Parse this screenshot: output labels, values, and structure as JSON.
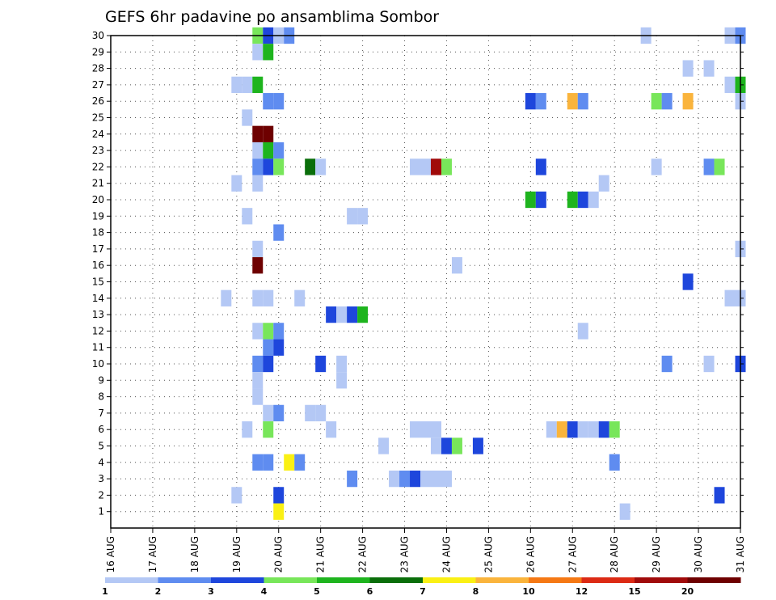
{
  "chart_data": {
    "type": "heatmap",
    "title": "GEFS 6hr padavine po ansamblima Sombor",
    "xlabel": "",
    "ylabel": "",
    "x_ticks": [
      "16 AUG",
      "17 AUG",
      "18 AUG",
      "19 AUG",
      "20 AUG",
      "21 AUG",
      "22 AUG",
      "23 AUG",
      "24 AUG",
      "25 AUG",
      "26 AUG",
      "27 AUG",
      "28 AUG",
      "29 AUG",
      "30 AUG",
      "31 AUG"
    ],
    "x_range_days": [
      16,
      31
    ],
    "y_range": [
      0,
      30
    ],
    "y_ticks": [
      1,
      2,
      3,
      4,
      5,
      6,
      7,
      8,
      9,
      10,
      11,
      12,
      13,
      14,
      15,
      16,
      17,
      18,
      19,
      20,
      21,
      22,
      23,
      24,
      25,
      26,
      27,
      28,
      29,
      30
    ],
    "grid": true,
    "legend_position": "bottom",
    "levels": [
      "1",
      "2",
      "3",
      "4",
      "5",
      "6",
      "7",
      "8",
      "10",
      "12",
      "15",
      "20"
    ],
    "colors": [
      "#b4c8f5",
      "#5f8cf0",
      "#1e46dc",
      "#78e65a",
      "#1eb41e",
      "#0a6e0a",
      "#faf014",
      "#fab43c",
      "#f57814",
      "#dc2a14",
      "#a00a0a",
      "#6e0000"
    ],
    "cells": [
      [
        30,
        19.5,
        4
      ],
      [
        30,
        19.75,
        3
      ],
      [
        30,
        20.0,
        1
      ],
      [
        30,
        20.25,
        2
      ],
      [
        30,
        28.75,
        1
      ],
      [
        30,
        30.75,
        1
      ],
      [
        30,
        31.0,
        2
      ],
      [
        29,
        19.5,
        1
      ],
      [
        29,
        19.75,
        5
      ],
      [
        28,
        29.75,
        1
      ],
      [
        28,
        30.25,
        1
      ],
      [
        27,
        19.0,
        1
      ],
      [
        27,
        19.25,
        1
      ],
      [
        27,
        19.5,
        5
      ],
      [
        27,
        30.75,
        1
      ],
      [
        27,
        31.0,
        5
      ],
      [
        26,
        19.75,
        2
      ],
      [
        26,
        20.0,
        2
      ],
      [
        26,
        26.0,
        3
      ],
      [
        26,
        26.25,
        2
      ],
      [
        26,
        27.0,
        8
      ],
      [
        26,
        27.25,
        2
      ],
      [
        26,
        29.0,
        4
      ],
      [
        26,
        29.25,
        2
      ],
      [
        26,
        29.75,
        8
      ],
      [
        26,
        31.0,
        1
      ],
      [
        25,
        19.25,
        1
      ],
      [
        24,
        19.5,
        12
      ],
      [
        24,
        19.75,
        12
      ],
      [
        23,
        19.5,
        1
      ],
      [
        23,
        19.75,
        5
      ],
      [
        23,
        20.0,
        2
      ],
      [
        22,
        19.5,
        2
      ],
      [
        22,
        19.75,
        3
      ],
      [
        22,
        20.0,
        4
      ],
      [
        22,
        20.75,
        6
      ],
      [
        22,
        21.0,
        1
      ],
      [
        22,
        23.25,
        1
      ],
      [
        22,
        23.5,
        1
      ],
      [
        22,
        23.75,
        11
      ],
      [
        22,
        24.0,
        4
      ],
      [
        22,
        26.25,
        3
      ],
      [
        22,
        29.0,
        1
      ],
      [
        22,
        30.25,
        2
      ],
      [
        22,
        30.5,
        4
      ],
      [
        21,
        19.0,
        1
      ],
      [
        21,
        19.5,
        1
      ],
      [
        21,
        27.75,
        1
      ],
      [
        20,
        26.0,
        5
      ],
      [
        20,
        26.25,
        3
      ],
      [
        20,
        27.0,
        5
      ],
      [
        20,
        27.25,
        3
      ],
      [
        20,
        27.5,
        1
      ],
      [
        19,
        19.25,
        1
      ],
      [
        19,
        21.75,
        1
      ],
      [
        19,
        22.0,
        1
      ],
      [
        18,
        20.0,
        2
      ],
      [
        17,
        19.5,
        1
      ],
      [
        17,
        31.0,
        1
      ],
      [
        16,
        19.5,
        12
      ],
      [
        16,
        24.25,
        1
      ],
      [
        15,
        29.75,
        3
      ],
      [
        14,
        18.75,
        1
      ],
      [
        14,
        19.5,
        1
      ],
      [
        14,
        19.75,
        1
      ],
      [
        14,
        20.5,
        1
      ],
      [
        14,
        30.75,
        1
      ],
      [
        14,
        31.0,
        1
      ],
      [
        13,
        21.25,
        3
      ],
      [
        13,
        21.5,
        1
      ],
      [
        13,
        21.75,
        3
      ],
      [
        13,
        22.0,
        5
      ],
      [
        12,
        19.5,
        1
      ],
      [
        12,
        19.75,
        4
      ],
      [
        12,
        20.0,
        2
      ],
      [
        12,
        27.25,
        1
      ],
      [
        11,
        19.75,
        2
      ],
      [
        11,
        20.0,
        3
      ],
      [
        10,
        19.5,
        2
      ],
      [
        10,
        19.75,
        3
      ],
      [
        10,
        21.0,
        3
      ],
      [
        10,
        21.5,
        1
      ],
      [
        10,
        29.25,
        2
      ],
      [
        10,
        30.25,
        1
      ],
      [
        10,
        31.0,
        3
      ],
      [
        9,
        19.5,
        1
      ],
      [
        9,
        21.5,
        1
      ],
      [
        8,
        19.5,
        1
      ],
      [
        7,
        19.75,
        1
      ],
      [
        7,
        20.0,
        2
      ],
      [
        7,
        20.75,
        1
      ],
      [
        7,
        21.0,
        1
      ],
      [
        6,
        19.25,
        1
      ],
      [
        6,
        19.75,
        4
      ],
      [
        6,
        21.25,
        1
      ],
      [
        6,
        23.25,
        1
      ],
      [
        6,
        23.5,
        1
      ],
      [
        6,
        23.75,
        1
      ],
      [
        6,
        26.5,
        1
      ],
      [
        6,
        26.75,
        8
      ],
      [
        6,
        27.0,
        3
      ],
      [
        6,
        27.25,
        1
      ],
      [
        6,
        27.5,
        1
      ],
      [
        6,
        27.75,
        3
      ],
      [
        6,
        28.0,
        4
      ],
      [
        5,
        22.5,
        1
      ],
      [
        5,
        23.75,
        1
      ],
      [
        5,
        24.0,
        3
      ],
      [
        5,
        24.25,
        4
      ],
      [
        5,
        24.75,
        3
      ],
      [
        4,
        19.5,
        2
      ],
      [
        4,
        19.75,
        2
      ],
      [
        4,
        20.25,
        7
      ],
      [
        4,
        20.5,
        2
      ],
      [
        4,
        28.0,
        2
      ],
      [
        3,
        21.75,
        2
      ],
      [
        3,
        22.75,
        1
      ],
      [
        3,
        23.0,
        2
      ],
      [
        3,
        23.25,
        3
      ],
      [
        3,
        23.5,
        1
      ],
      [
        3,
        23.75,
        1
      ],
      [
        3,
        24.0,
        1
      ],
      [
        2,
        19.0,
        1
      ],
      [
        2,
        20.0,
        3
      ],
      [
        2,
        30.5,
        3
      ],
      [
        1,
        20.0,
        7
      ],
      [
        1,
        28.25,
        1
      ]
    ]
  }
}
